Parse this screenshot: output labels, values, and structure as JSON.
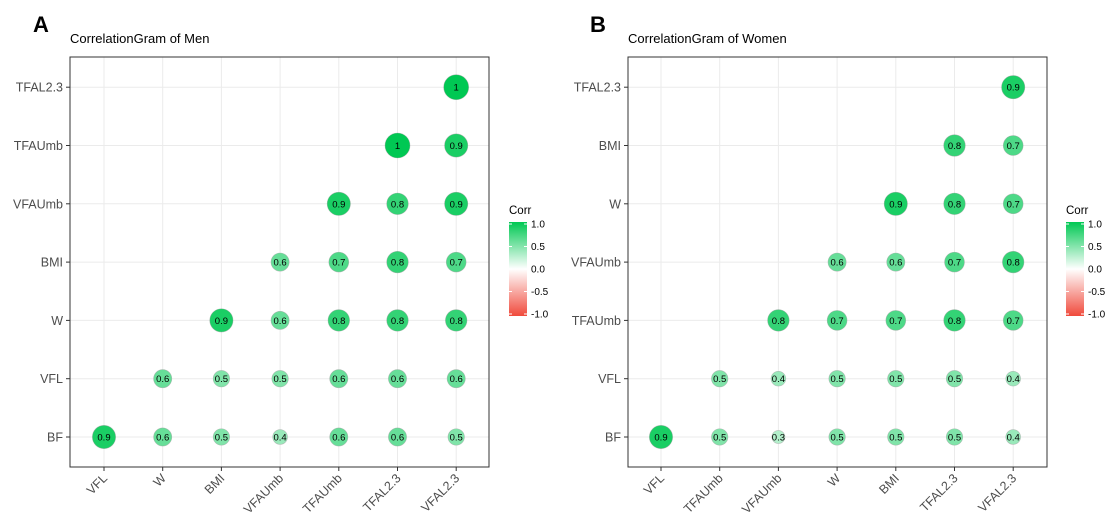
{
  "chart_data": [
    {
      "panel_label": "A",
      "type": "scatter",
      "title": "CorrelationGram of Men",
      "x_labels": [
        "VFL",
        "W",
        "BMI",
        "VFAUmb",
        "TFAUmb",
        "TFAL2.3",
        "VFAL2.3"
      ],
      "y_labels": [
        "BF",
        "VFL",
        "W",
        "BMI",
        "VFAUmb",
        "TFAUmb",
        "TFAL2.3"
      ],
      "grid": true,
      "legend": {
        "title": "Corr",
        "ticks": [
          "1.0",
          "0.5",
          "0.0",
          "-0.5",
          "-1.0"
        ],
        "range": [
          -1,
          1
        ],
        "placement": "right"
      },
      "cells": [
        {
          "x": "VFL",
          "y": "BF",
          "value": 0.9,
          "label": "0.9"
        },
        {
          "x": "W",
          "y": "BF",
          "value": 0.6,
          "label": "0.6"
        },
        {
          "x": "BMI",
          "y": "BF",
          "value": 0.5,
          "label": "0.5"
        },
        {
          "x": "VFAUmb",
          "y": "BF",
          "value": 0.4,
          "label": "0.4"
        },
        {
          "x": "TFAUmb",
          "y": "BF",
          "value": 0.6,
          "label": "0.6"
        },
        {
          "x": "TFAL2.3",
          "y": "BF",
          "value": 0.6,
          "label": "0.6"
        },
        {
          "x": "VFAL2.3",
          "y": "BF",
          "value": 0.5,
          "label": "0.5"
        },
        {
          "x": "W",
          "y": "VFL",
          "value": 0.6,
          "label": "0.6"
        },
        {
          "x": "BMI",
          "y": "VFL",
          "value": 0.5,
          "label": "0.5"
        },
        {
          "x": "VFAUmb",
          "y": "VFL",
          "value": 0.5,
          "label": "0.5"
        },
        {
          "x": "TFAUmb",
          "y": "VFL",
          "value": 0.6,
          "label": "0.6"
        },
        {
          "x": "TFAL2.3",
          "y": "VFL",
          "value": 0.6,
          "label": "0.6"
        },
        {
          "x": "VFAL2.3",
          "y": "VFL",
          "value": 0.6,
          "label": "0.6"
        },
        {
          "x": "BMI",
          "y": "W",
          "value": 0.9,
          "label": "0.9"
        },
        {
          "x": "VFAUmb",
          "y": "W",
          "value": 0.6,
          "label": "0.6"
        },
        {
          "x": "TFAUmb",
          "y": "W",
          "value": 0.8,
          "label": "0.8"
        },
        {
          "x": "TFAL2.3",
          "y": "W",
          "value": 0.8,
          "label": "0.8"
        },
        {
          "x": "VFAL2.3",
          "y": "W",
          "value": 0.8,
          "label": "0.8"
        },
        {
          "x": "VFAUmb",
          "y": "BMI",
          "value": 0.6,
          "label": "0.6"
        },
        {
          "x": "TFAUmb",
          "y": "BMI",
          "value": 0.7,
          "label": "0.7"
        },
        {
          "x": "TFAL2.3",
          "y": "BMI",
          "value": 0.8,
          "label": "0.8"
        },
        {
          "x": "VFAL2.3",
          "y": "BMI",
          "value": 0.7,
          "label": "0.7"
        },
        {
          "x": "TFAUmb",
          "y": "VFAUmb",
          "value": 0.9,
          "label": "0.9"
        },
        {
          "x": "TFAL2.3",
          "y": "VFAUmb",
          "value": 0.8,
          "label": "0.8"
        },
        {
          "x": "VFAL2.3",
          "y": "VFAUmb",
          "value": 0.9,
          "label": "0.9"
        },
        {
          "x": "TFAL2.3",
          "y": "TFAUmb",
          "value": 1.0,
          "label": "1"
        },
        {
          "x": "VFAL2.3",
          "y": "TFAUmb",
          "value": 0.9,
          "label": "0.9"
        },
        {
          "x": "VFAL2.3",
          "y": "TFAL2.3",
          "value": 1.0,
          "label": "1"
        }
      ]
    },
    {
      "panel_label": "B",
      "type": "scatter",
      "title": "CorrelationGram of Women",
      "x_labels": [
        "VFL",
        "TFAUmb",
        "VFAUmb",
        "W",
        "BMI",
        "TFAL2.3",
        "VFAL2.3"
      ],
      "y_labels": [
        "BF",
        "VFL",
        "TFAUmb",
        "VFAUmb",
        "W",
        "BMI",
        "TFAL2.3"
      ],
      "grid": true,
      "legend": {
        "title": "Corr",
        "ticks": [
          "1.0",
          "0.5",
          "0.0",
          "-0.5",
          "-1.0"
        ],
        "range": [
          -1,
          1
        ],
        "placement": "right"
      },
      "cells": [
        {
          "x": "VFL",
          "y": "BF",
          "value": 0.9,
          "label": "0.9"
        },
        {
          "x": "TFAUmb",
          "y": "BF",
          "value": 0.5,
          "label": "0.5"
        },
        {
          "x": "VFAUmb",
          "y": "BF",
          "value": 0.3,
          "label": "0.3"
        },
        {
          "x": "W",
          "y": "BF",
          "value": 0.5,
          "label": "0.5"
        },
        {
          "x": "BMI",
          "y": "BF",
          "value": 0.5,
          "label": "0.5"
        },
        {
          "x": "TFAL2.3",
          "y": "BF",
          "value": 0.5,
          "label": "0.5"
        },
        {
          "x": "VFAL2.3",
          "y": "BF",
          "value": 0.4,
          "label": "0.4"
        },
        {
          "x": "TFAUmb",
          "y": "VFL",
          "value": 0.5,
          "label": "0.5"
        },
        {
          "x": "VFAUmb",
          "y": "VFL",
          "value": 0.4,
          "label": "0.4"
        },
        {
          "x": "W",
          "y": "VFL",
          "value": 0.5,
          "label": "0.5"
        },
        {
          "x": "BMI",
          "y": "VFL",
          "value": 0.5,
          "label": "0.5"
        },
        {
          "x": "TFAL2.3",
          "y": "VFL",
          "value": 0.5,
          "label": "0.5"
        },
        {
          "x": "VFAL2.3",
          "y": "VFL",
          "value": 0.4,
          "label": "0.4"
        },
        {
          "x": "VFAUmb",
          "y": "TFAUmb",
          "value": 0.8,
          "label": "0.8"
        },
        {
          "x": "W",
          "y": "TFAUmb",
          "value": 0.7,
          "label": "0.7"
        },
        {
          "x": "BMI",
          "y": "TFAUmb",
          "value": 0.7,
          "label": "0.7"
        },
        {
          "x": "TFAL2.3",
          "y": "TFAUmb",
          "value": 0.8,
          "label": "0.8"
        },
        {
          "x": "VFAL2.3",
          "y": "TFAUmb",
          "value": 0.7,
          "label": "0.7"
        },
        {
          "x": "W",
          "y": "VFAUmb",
          "value": 0.6,
          "label": "0.6"
        },
        {
          "x": "BMI",
          "y": "VFAUmb",
          "value": 0.6,
          "label": "0.6"
        },
        {
          "x": "TFAL2.3",
          "y": "VFAUmb",
          "value": 0.7,
          "label": "0.7"
        },
        {
          "x": "VFAL2.3",
          "y": "VFAUmb",
          "value": 0.8,
          "label": "0.8"
        },
        {
          "x": "BMI",
          "y": "W",
          "value": 0.9,
          "label": "0.9"
        },
        {
          "x": "TFAL2.3",
          "y": "W",
          "value": 0.8,
          "label": "0.8"
        },
        {
          "x": "VFAL2.3",
          "y": "W",
          "value": 0.7,
          "label": "0.7"
        },
        {
          "x": "TFAL2.3",
          "y": "BMI",
          "value": 0.8,
          "label": "0.8"
        },
        {
          "x": "VFAL2.3",
          "y": "BMI",
          "value": 0.7,
          "label": "0.7"
        },
        {
          "x": "VFAL2.3",
          "y": "TFAL2.3",
          "value": 0.9,
          "label": "0.9"
        }
      ]
    }
  ],
  "colors": {
    "positive": "#00c853",
    "neutral": "#ffffff",
    "negative": "#f04a3c",
    "grid": "#ebebeb",
    "panel_border": "#333333",
    "tick_text": "#4d4d4d"
  }
}
